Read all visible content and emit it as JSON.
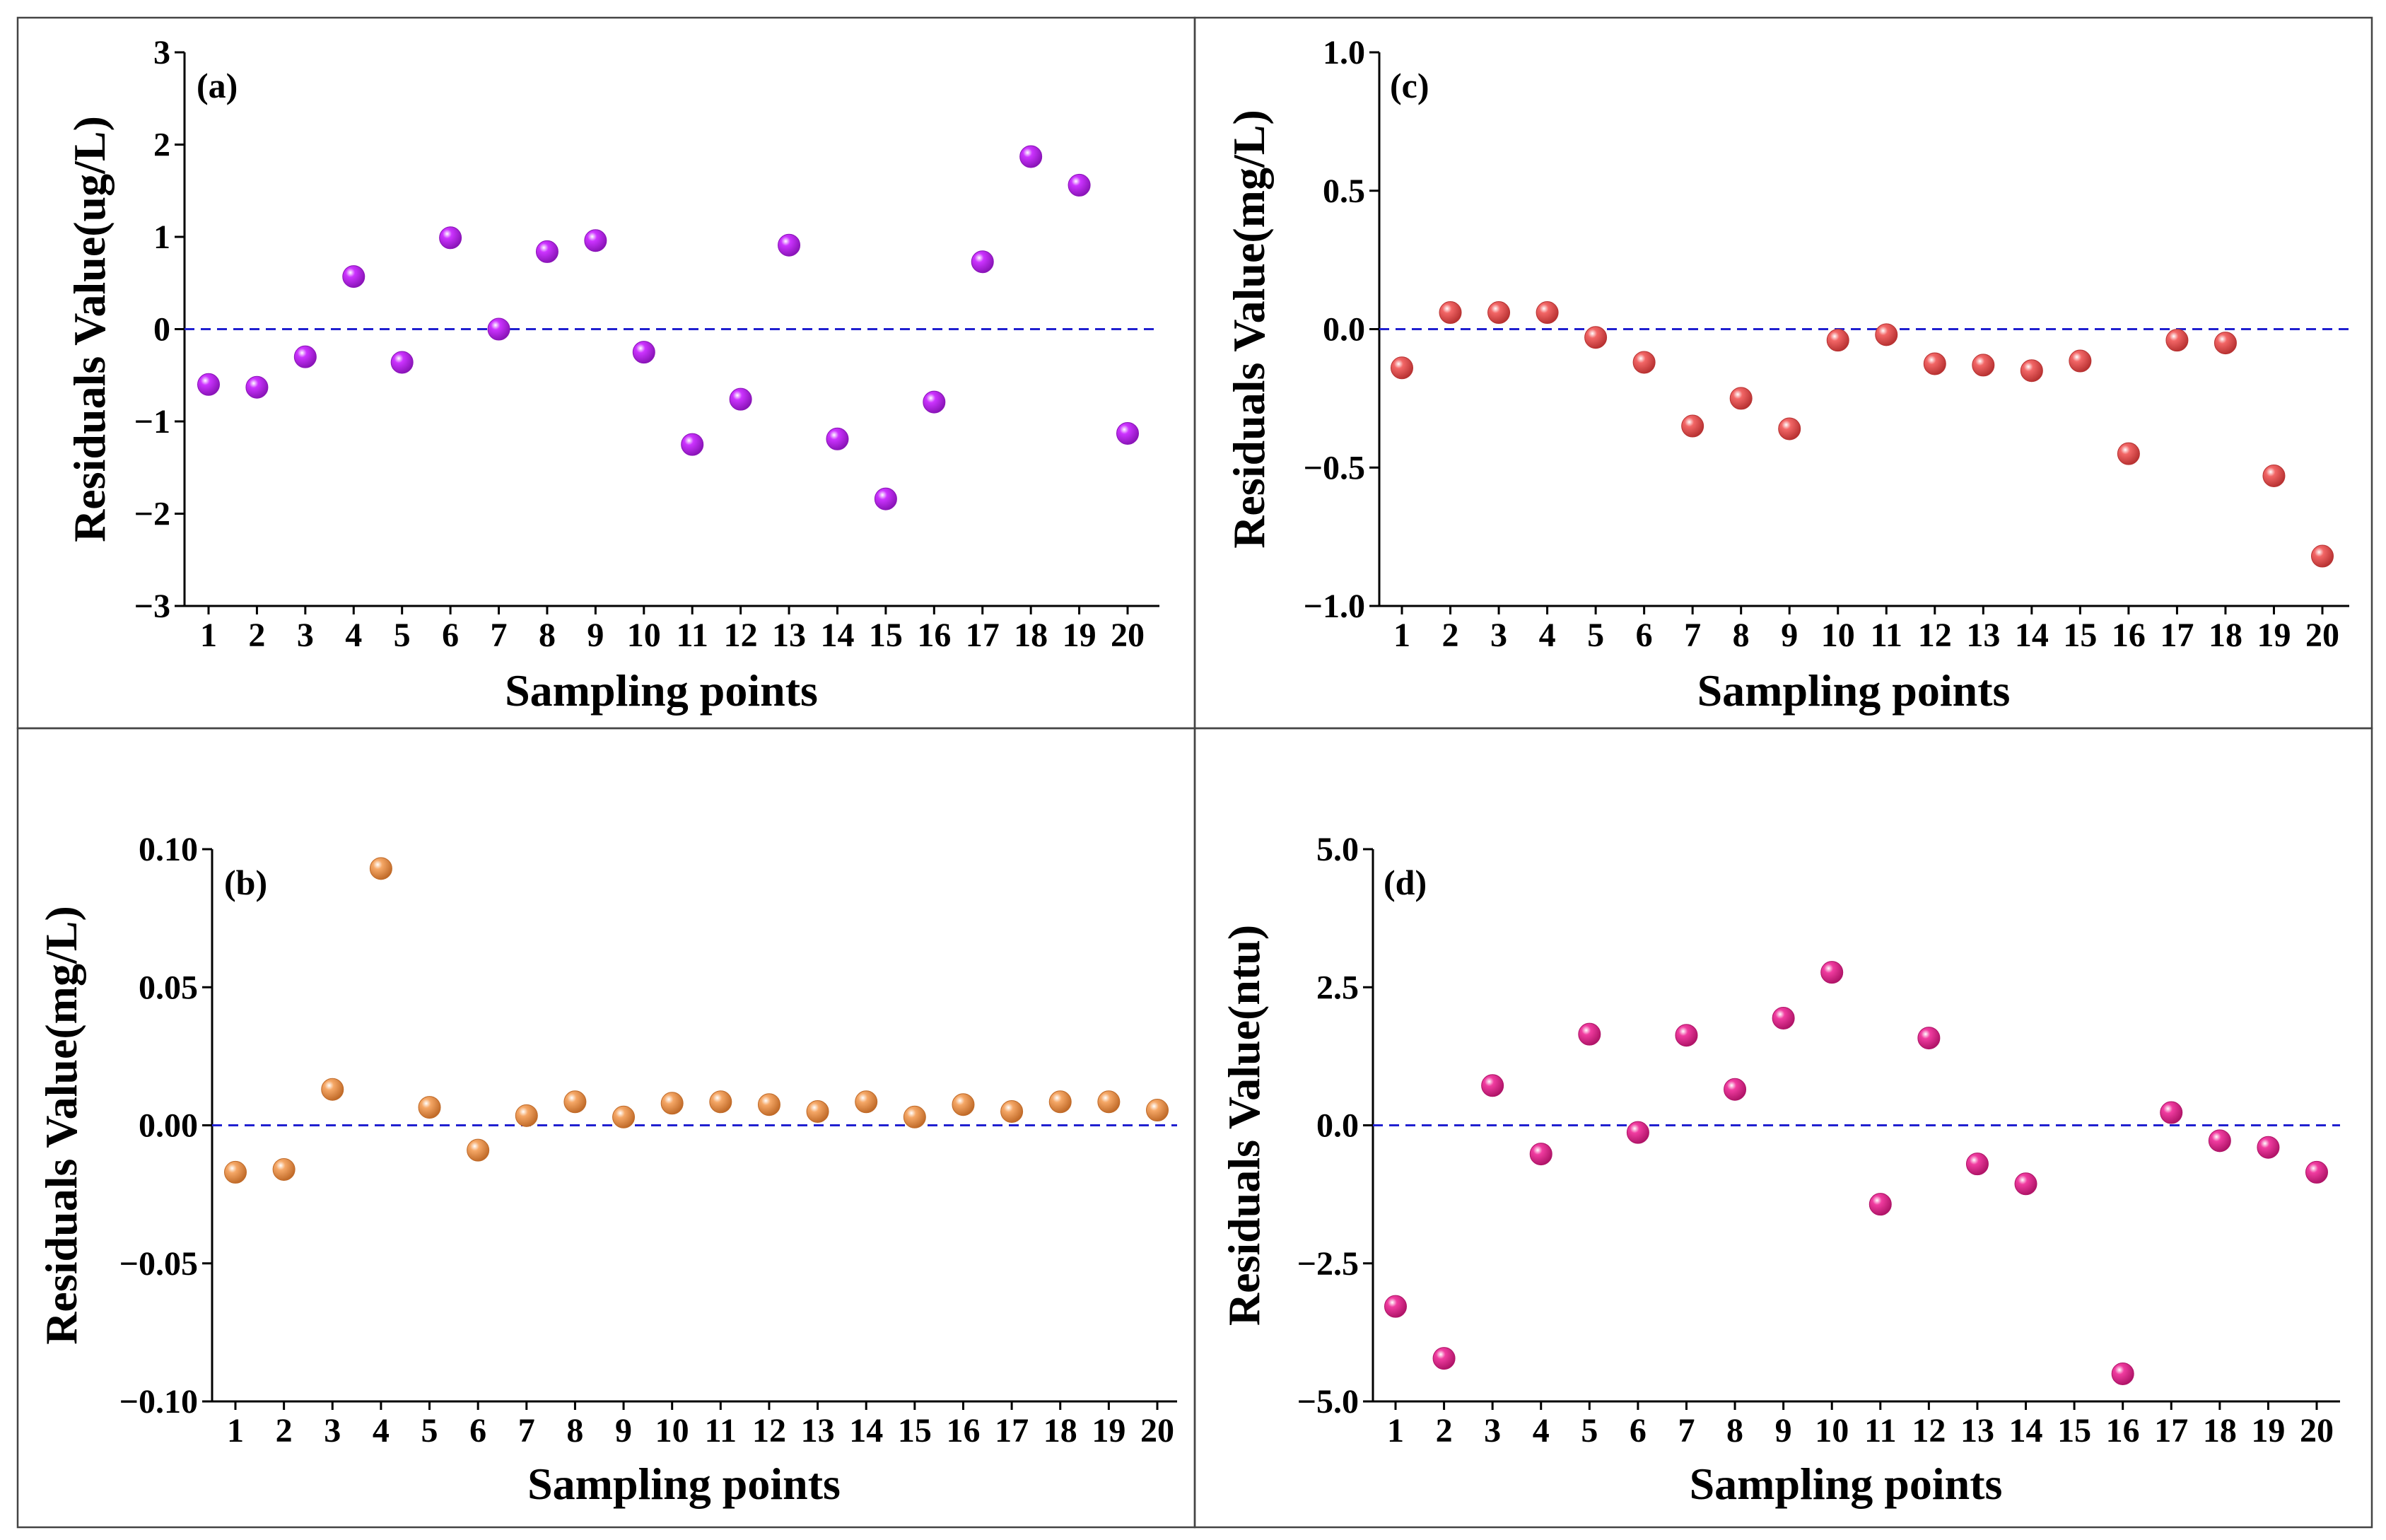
{
  "chart_data": [
    {
      "id": "a",
      "type": "scatter",
      "panel_label": "(a)",
      "xlabel": "Sampling points",
      "ylabel": "Residuals Value(ug/L)",
      "x": [
        1,
        2,
        3,
        4,
        5,
        6,
        7,
        8,
        9,
        10,
        11,
        12,
        13,
        14,
        15,
        16,
        17,
        18,
        19,
        20
      ],
      "x_tick_labels": [
        "1",
        "2",
        "3",
        "4",
        "5",
        "6",
        "7",
        "8",
        "9",
        "10",
        "11",
        "12",
        "13",
        "14",
        "15",
        "16",
        "17",
        "18",
        "19",
        "20"
      ],
      "y": [
        -0.6,
        -0.63,
        -0.3,
        0.57,
        -0.36,
        0.99,
        0.0,
        0.84,
        0.96,
        -0.25,
        -1.25,
        -0.76,
        0.91,
        -1.19,
        -1.84,
        -0.79,
        0.73,
        1.87,
        1.56,
        -1.13
      ],
      "ylim": [
        -3,
        3
      ],
      "y_ticks": [
        -3,
        -2,
        -1,
        0,
        1,
        2,
        3
      ],
      "y_tick_labels": [
        "−3",
        "−2",
        "−1",
        "0",
        "1",
        "2",
        "3"
      ],
      "reference_line": 0,
      "color": "#cc33ff",
      "marker_shade": "#8a14b8"
    },
    {
      "id": "c",
      "type": "scatter",
      "panel_label": "(c)",
      "xlabel": "Sampling points",
      "ylabel": "Residuals Value(mg/L)",
      "x": [
        1,
        2,
        3,
        4,
        5,
        6,
        7,
        8,
        9,
        10,
        11,
        12,
        13,
        14,
        15,
        16,
        17,
        18,
        19,
        20
      ],
      "x_tick_labels": [
        "1",
        "2",
        "3",
        "4",
        "5",
        "6",
        "7",
        "8",
        "9",
        "10",
        "11",
        "12",
        "13",
        "14",
        "15",
        "16",
        "17",
        "18",
        "19",
        "20"
      ],
      "y": [
        -0.14,
        0.06,
        0.06,
        0.06,
        -0.03,
        -0.12,
        -0.35,
        -0.25,
        -0.36,
        -0.04,
        -0.02,
        -0.125,
        -0.13,
        -0.15,
        -0.115,
        -0.45,
        -0.04,
        -0.05,
        -0.53,
        -0.82
      ],
      "ylim": [
        -1.0,
        1.0
      ],
      "y_ticks": [
        -1.0,
        -0.5,
        0.0,
        0.5,
        1.0
      ],
      "y_tick_labels": [
        "−1.0",
        "−0.5",
        "0.0",
        "0.5",
        "1.0"
      ],
      "reference_line": 0,
      "color": "#f26666",
      "marker_shade": "#b83232"
    },
    {
      "id": "b",
      "type": "scatter",
      "panel_label": "(b)",
      "xlabel": "Sampling points",
      "ylabel": "Residuals Value(mg/L)",
      "x": [
        1,
        2,
        3,
        4,
        5,
        6,
        7,
        8,
        9,
        10,
        11,
        12,
        13,
        14,
        15,
        16,
        17,
        18,
        19,
        20
      ],
      "x_tick_labels": [
        "1",
        "2",
        "3",
        "4",
        "5",
        "6",
        "7",
        "8",
        "9",
        "10",
        "11",
        "12",
        "13",
        "14",
        "15",
        "16",
        "17",
        "18",
        "19",
        "20"
      ],
      "y": [
        -0.017,
        -0.016,
        0.013,
        0.093,
        0.0065,
        -0.009,
        0.0035,
        0.0085,
        0.003,
        0.008,
        0.0085,
        0.0075,
        0.005,
        0.0085,
        0.003,
        0.0075,
        0.005,
        0.0085,
        0.0085,
        0.0055
      ],
      "ylim": [
        -0.1,
        0.1
      ],
      "y_ticks": [
        -0.1,
        -0.05,
        0.0,
        0.05,
        0.1
      ],
      "y_tick_labels": [
        "−0.10",
        "−0.05",
        "0.00",
        "0.05",
        "0.10"
      ],
      "reference_line": 0,
      "color": "#f5a766",
      "marker_shade": "#c06a28"
    },
    {
      "id": "d",
      "type": "scatter",
      "panel_label": "(d)",
      "xlabel": "Sampling points",
      "ylabel": "Residuals Value(ntu)",
      "x": [
        1,
        2,
        3,
        4,
        5,
        6,
        7,
        8,
        9,
        10,
        11,
        12,
        13,
        14,
        16,
        17,
        18,
        19,
        20
      ],
      "x_tick_labels": [
        "1",
        "2",
        "3",
        "4",
        "5",
        "6",
        "7",
        "8",
        "9",
        "10",
        "11",
        "12",
        "13",
        "14",
        "15",
        "16",
        "17",
        "18",
        "19",
        "20"
      ],
      "y": [
        -3.28,
        -4.22,
        0.72,
        -0.52,
        1.65,
        -0.13,
        1.63,
        0.65,
        1.94,
        2.77,
        -1.43,
        1.58,
        -0.7,
        -1.06,
        -4.5,
        0.23,
        -0.28,
        -0.4,
        -0.85
      ],
      "ylim": [
        -5.0,
        5.0
      ],
      "y_ticks": [
        -5.0,
        -2.5,
        0.0,
        2.5,
        5.0
      ],
      "y_tick_labels": [
        "−5.0",
        "−2.5",
        "0.0",
        "2.5",
        "5.0"
      ],
      "reference_line": 0,
      "color": "#f03ca0",
      "marker_shade": "#b01468"
    }
  ]
}
